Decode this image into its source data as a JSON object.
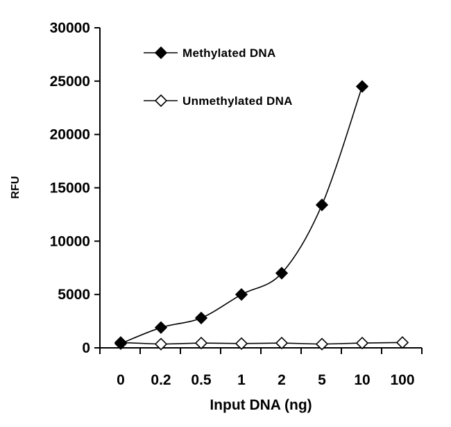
{
  "chart_data": {
    "type": "line",
    "title": "",
    "xlabel": "Input DNA (ng)",
    "ylabel": "RFU",
    "categories": [
      "0",
      "0.2",
      "0.5",
      "1",
      "2",
      "5",
      "10",
      "100"
    ],
    "ylim": [
      0,
      30000
    ],
    "yticks": [
      0,
      5000,
      10000,
      15000,
      20000,
      25000,
      30000
    ],
    "grid": false,
    "legend_position": "top-left",
    "series": [
      {
        "name": "Methylated DNA",
        "marker": "filled-diamond",
        "color": "#000000",
        "values": [
          400,
          1900,
          2800,
          5000,
          7000,
          13400,
          24500,
          null
        ]
      },
      {
        "name": "Unmethylated DNA",
        "marker": "open-diamond",
        "color": "#000000",
        "values": [
          500,
          350,
          450,
          400,
          450,
          350,
          450,
          500
        ]
      }
    ]
  }
}
